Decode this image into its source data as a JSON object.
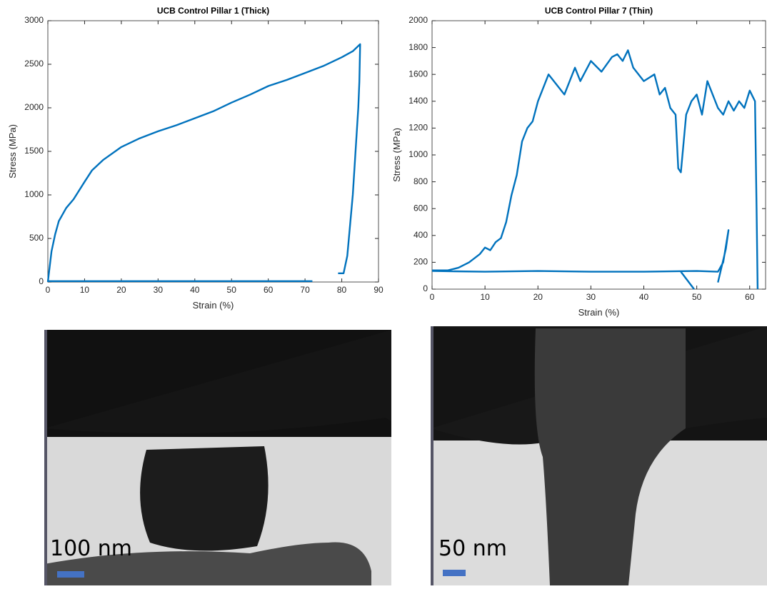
{
  "chart_data": [
    {
      "type": "line",
      "title": "UCB Control Pillar 1 (Thick)",
      "x_label": "Strain (%)",
      "y_label": "Stress (MPa)",
      "xlim": [
        0,
        90
      ],
      "xticks": [
        0,
        10,
        20,
        30,
        40,
        50,
        60,
        70,
        80,
        90
      ],
      "ylim": [
        0,
        3000
      ],
      "yticks": [
        0,
        500,
        1000,
        1500,
        2000,
        2500,
        3000
      ],
      "series": [
        {
          "color": "#0072bd",
          "x": [
            0,
            1,
            2,
            3,
            5,
            7,
            10,
            12,
            15,
            20,
            25,
            30,
            35,
            40,
            45,
            50,
            55,
            60,
            65,
            70,
            75,
            80,
            83,
            85,
            84.8,
            84.5,
            83,
            81.5,
            80.5,
            79,
            null,
            0,
            72
          ],
          "values": [
            0,
            350,
            550,
            700,
            850,
            950,
            1150,
            1280,
            1400,
            1550,
            1650,
            1730,
            1800,
            1880,
            1960,
            2060,
            2150,
            2250,
            2320,
            2400,
            2480,
            2580,
            2650,
            2730,
            2300,
            2000,
            1000,
            300,
            100,
            100,
            null,
            10,
            10
          ]
        }
      ]
    },
    {
      "type": "line",
      "title": "UCB Control Pillar 7 (Thin)",
      "x_label": "Strain (%)",
      "y_label": "Stress (MPa)",
      "xlim": [
        0,
        63
      ],
      "xticks": [
        0,
        10,
        20,
        30,
        40,
        50,
        60
      ],
      "ylim": [
        0,
        2000
      ],
      "yticks": [
        0,
        200,
        400,
        600,
        800,
        1000,
        1200,
        1400,
        1600,
        1800,
        2000
      ],
      "series": [
        {
          "color": "#0072bd",
          "x": [
            0,
            3,
            5,
            7,
            9,
            10,
            11,
            12,
            13,
            14,
            15,
            16,
            17,
            18,
            19,
            20,
            22,
            23,
            25,
            27,
            28,
            30,
            32,
            34,
            35,
            36,
            37,
            38,
            40,
            42,
            43,
            44,
            45,
            46,
            46.5,
            47,
            48,
            49,
            50,
            51,
            52,
            53,
            54,
            55,
            56,
            57,
            58,
            59,
            60,
            61,
            61.3,
            61.5,
            null,
            0,
            10,
            20,
            30,
            40,
            50,
            54,
            55,
            56,
            55.5,
            54,
            null,
            47,
            49.5
          ],
          "values": [
            140,
            140,
            160,
            200,
            260,
            310,
            290,
            350,
            380,
            500,
            700,
            850,
            1100,
            1200,
            1250,
            1400,
            1600,
            1550,
            1450,
            1650,
            1550,
            1700,
            1620,
            1730,
            1750,
            1700,
            1780,
            1650,
            1550,
            1600,
            1450,
            1500,
            1350,
            1300,
            900,
            870,
            1300,
            1400,
            1450,
            1300,
            1550,
            1450,
            1350,
            1300,
            1400,
            1330,
            1400,
            1350,
            1480,
            1400,
            600,
            0,
            null,
            135,
            130,
            135,
            130,
            130,
            135,
            130,
            200,
            440,
            300,
            50,
            null,
            130,
            0
          ]
        }
      ]
    }
  ],
  "images": [
    {
      "scale_label": "100 nm"
    },
    {
      "scale_label": "50 nm"
    }
  ]
}
